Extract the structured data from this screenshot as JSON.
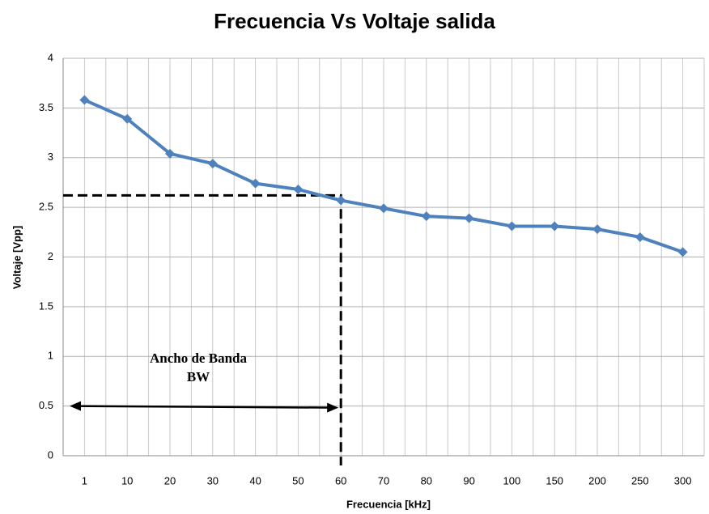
{
  "chart_data": {
    "type": "line",
    "title": "Frecuencia Vs Voltaje salida",
    "x_label": "Frecuencia [kHz]",
    "y_label": "Voltaje [Vpp]",
    "categories": [
      "1",
      "10",
      "20",
      "30",
      "40",
      "50",
      "60",
      "70",
      "80",
      "90",
      "100",
      "150",
      "200",
      "250",
      "300"
    ],
    "series": [
      {
        "name": "Voltaje",
        "color": "#4f81bd",
        "values": [
          3.58,
          3.39,
          3.04,
          2.94,
          2.74,
          2.68,
          2.57,
          2.49,
          2.41,
          2.39,
          2.31,
          2.31,
          2.28,
          2.2,
          2.05
        ]
      }
    ],
    "ylim": [
      0,
      4
    ],
    "yticks": [
      0,
      0.5,
      1,
      1.5,
      2,
      2.5,
      3,
      3.5,
      4
    ],
    "grid": true,
    "legend": false,
    "annotation": {
      "lines": [
        "Ancho de Banda",
        "BW"
      ],
      "category": "60",
      "level": 2.62,
      "arrow_at": 0.5
    }
  }
}
